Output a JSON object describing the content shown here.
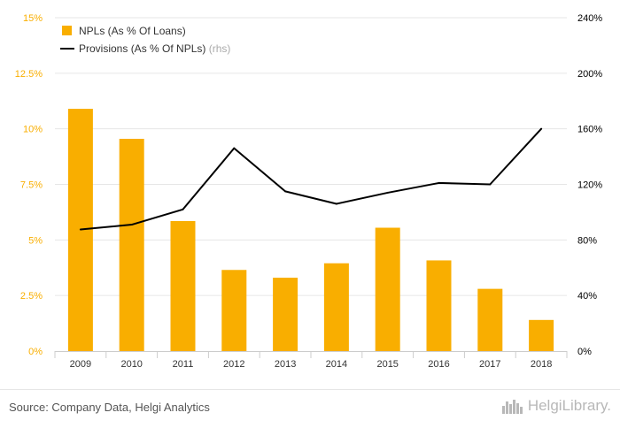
{
  "chart_data": {
    "type": "bar+line",
    "categories": [
      "2009",
      "2010",
      "2011",
      "2012",
      "2013",
      "2014",
      "2015",
      "2016",
      "2017",
      "2018"
    ],
    "series": [
      {
        "name": "NPLs (As % Of Loans)",
        "type": "bar",
        "axis": "left",
        "color": "#f9ae00",
        "values": [
          10.9,
          9.55,
          5.85,
          3.65,
          3.3,
          3.95,
          5.55,
          4.08,
          2.8,
          1.4
        ]
      },
      {
        "name": "Provisions (As % Of NPLs)",
        "name_suffix": "(rhs)",
        "type": "line",
        "axis": "right",
        "color": "#000000",
        "values": [
          87.5,
          91,
          102,
          146,
          115,
          106,
          114,
          121,
          120,
          160
        ]
      }
    ],
    "y_left": {
      "min": 0,
      "max": 15,
      "ticks": [
        0,
        2.5,
        5,
        7.5,
        10,
        12.5,
        15
      ],
      "tick_labels": [
        "0%",
        "2.5%",
        "5%",
        "7.5%",
        "10%",
        "12.5%",
        "15%"
      ],
      "color": "#f9ae00"
    },
    "y_right": {
      "min": 0,
      "max": 240,
      "ticks": [
        0,
        40,
        80,
        120,
        160,
        200,
        240
      ],
      "tick_labels": [
        "0%",
        "40%",
        "80%",
        "120%",
        "160%",
        "200%",
        "240%"
      ],
      "color": "#000000"
    },
    "grid": true,
    "legend": "top-left"
  },
  "footer": {
    "source": "Source: Company Data, Helgi Analytics",
    "logo_text": "HelgiLibrary."
  }
}
